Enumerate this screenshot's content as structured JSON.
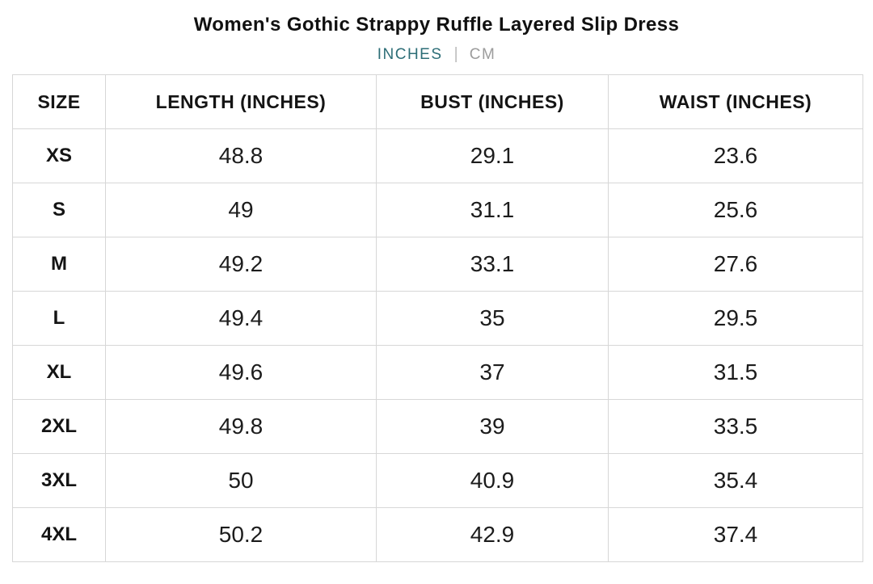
{
  "page": {
    "title": "Women's Gothic Strappy Ruffle Layered Slip Dress"
  },
  "unit_toggle": {
    "active": "INCHES",
    "separator": "|",
    "active_color": "#2d6e77",
    "inactive_color": "#9c9c9c",
    "options": [
      {
        "label": "INCHES",
        "active": true
      },
      {
        "label": "CM",
        "active": false
      }
    ]
  },
  "chart_data": {
    "type": "table",
    "title": "Women's Gothic Strappy Ruffle Layered Slip Dress",
    "columns": [
      "SIZE",
      "LENGTH (INCHES)",
      "BUST (INCHES)",
      "WAIST (INCHES)"
    ],
    "rows": [
      {
        "size": "XS",
        "length": "48.8",
        "bust": "29.1",
        "waist": "23.6"
      },
      {
        "size": "S",
        "length": "49",
        "bust": "31.1",
        "waist": "25.6"
      },
      {
        "size": "M",
        "length": "49.2",
        "bust": "33.1",
        "waist": "27.6"
      },
      {
        "size": "L",
        "length": "49.4",
        "bust": "35",
        "waist": "29.5"
      },
      {
        "size": "XL",
        "length": "49.6",
        "bust": "37",
        "waist": "31.5"
      },
      {
        "size": "2XL",
        "length": "49.8",
        "bust": "39",
        "waist": "33.5"
      },
      {
        "size": "3XL",
        "length": "50",
        "bust": "40.9",
        "waist": "35.4"
      },
      {
        "size": "4XL",
        "length": "50.2",
        "bust": "42.9",
        "waist": "37.4"
      }
    ]
  }
}
